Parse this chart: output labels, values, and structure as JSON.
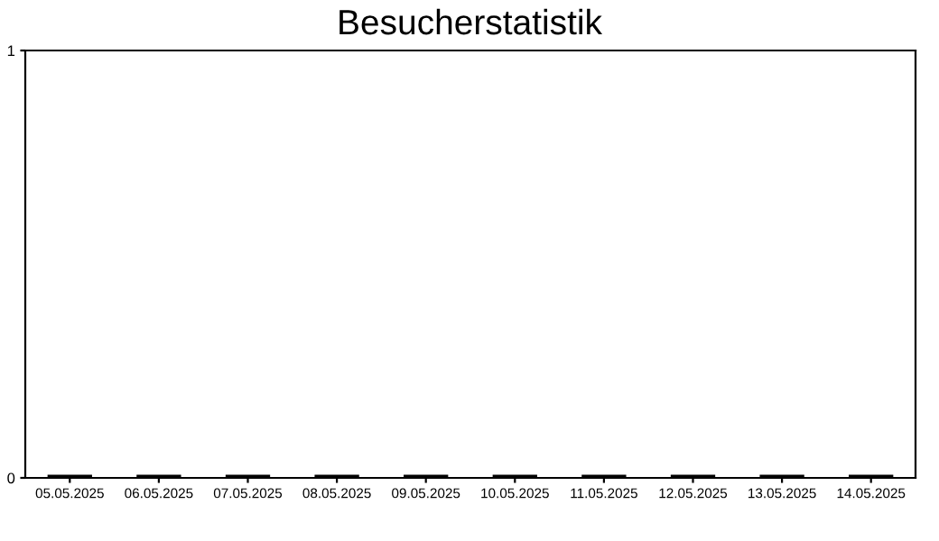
{
  "chart_data": {
    "type": "bar",
    "title": "Besucherstatistik",
    "categories": [
      "05.05.2025",
      "06.05.2025",
      "07.05.2025",
      "08.05.2025",
      "09.05.2025",
      "10.05.2025",
      "11.05.2025",
      "12.05.2025",
      "13.05.2025",
      "14.05.2025"
    ],
    "values": [
      0,
      0,
      0,
      0,
      0,
      0,
      0,
      0,
      0,
      0
    ],
    "color": "#000000",
    "ylim": [
      0,
      1
    ],
    "yticks": [
      0,
      1
    ],
    "grid": false
  }
}
